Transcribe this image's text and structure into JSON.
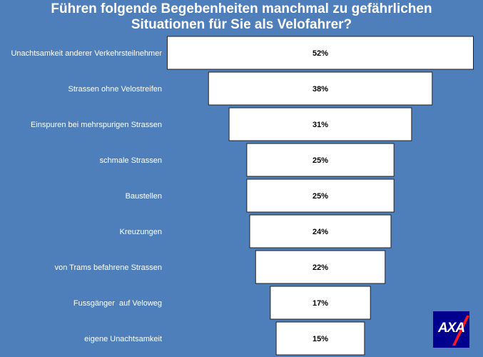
{
  "title_line1": "Führen folgende Begebenheiten manchmal zu gefährlichen",
  "title_line2": "Situationen für Sie als Velofahrer?",
  "brand": "AXA",
  "colors": {
    "background": "#4f7fbb",
    "bar_fill": "#ffffff",
    "bar_stroke": "#222222",
    "brand_blue": "#00008f",
    "brand_red": "#ff1721"
  },
  "chart_data": {
    "type": "bar",
    "orientation": "horizontal-funnel",
    "categories": [
      "Unachtsamkeit anderer Verkehrsteilnehmer",
      "Strassen ohne Velostreifen",
      "Einspuren bei mehrspurigen Strassen",
      "schmale Strassen",
      "Baustellen",
      "Kreuzungen",
      "von Trams befahrene Strassen",
      "Fussgänger  auf Veloweg",
      "eigene Unachtsamkeit"
    ],
    "values": [
      52,
      38,
      31,
      25,
      25,
      24,
      22,
      17,
      15
    ],
    "value_labels": [
      "52%",
      "38%",
      "31%",
      "25%",
      "25%",
      "24%",
      "22%",
      "17%",
      "15%"
    ],
    "unit": "%",
    "xlim": [
      0,
      52
    ]
  }
}
